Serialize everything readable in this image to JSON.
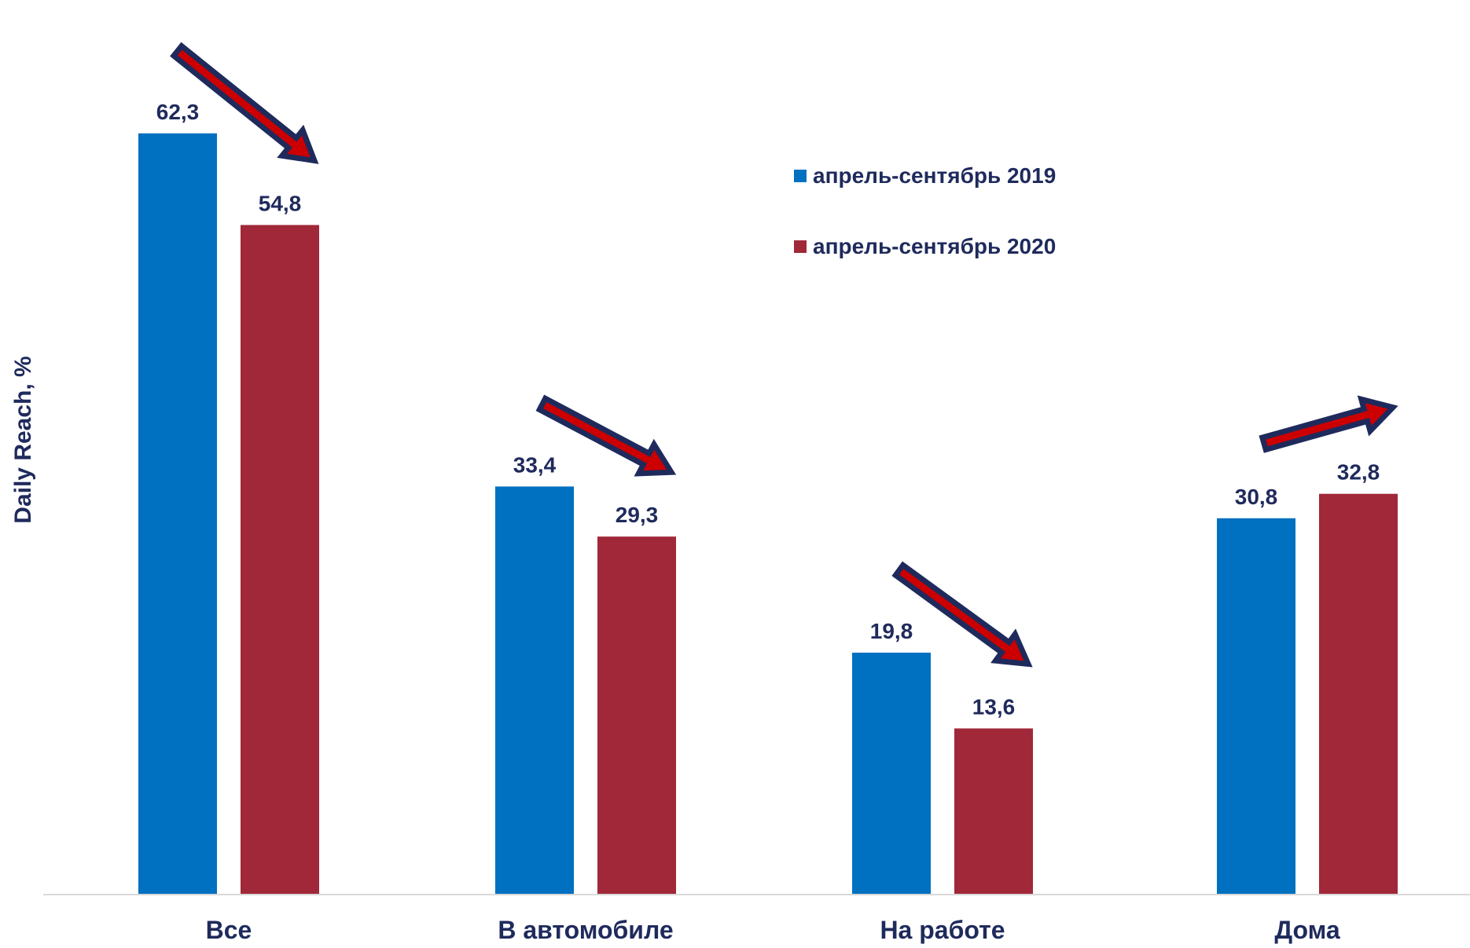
{
  "chart_data": {
    "type": "bar",
    "categories": [
      "Все",
      "В автомобиле",
      "На работе",
      "Дома"
    ],
    "series": [
      {
        "name": "апрель-сентябрь 2019",
        "color": "#0070c0",
        "values": [
          62.3,
          33.4,
          19.8,
          30.8
        ],
        "labels": [
          "62,3",
          "33,4",
          "19,8",
          "30,8"
        ]
      },
      {
        "name": "апрель-сентябрь 2020",
        "color": "#a02838",
        "values": [
          54.8,
          29.3,
          13.6,
          32.8
        ],
        "labels": [
          "54,8",
          "29,3",
          "13,6",
          "32,8"
        ]
      }
    ],
    "ylabel": "Daily Reach, %",
    "xlabel": "",
    "ylim": [
      0,
      70
    ],
    "grid": false,
    "legend_position": "top-right",
    "annotations": [
      "down-arrow",
      "down-arrow",
      "down-arrow",
      "up-arrow"
    ],
    "text_color": "#1f2a5c",
    "arrow_fill": "#cc0000",
    "arrow_outline": "#1f2a5c"
  }
}
